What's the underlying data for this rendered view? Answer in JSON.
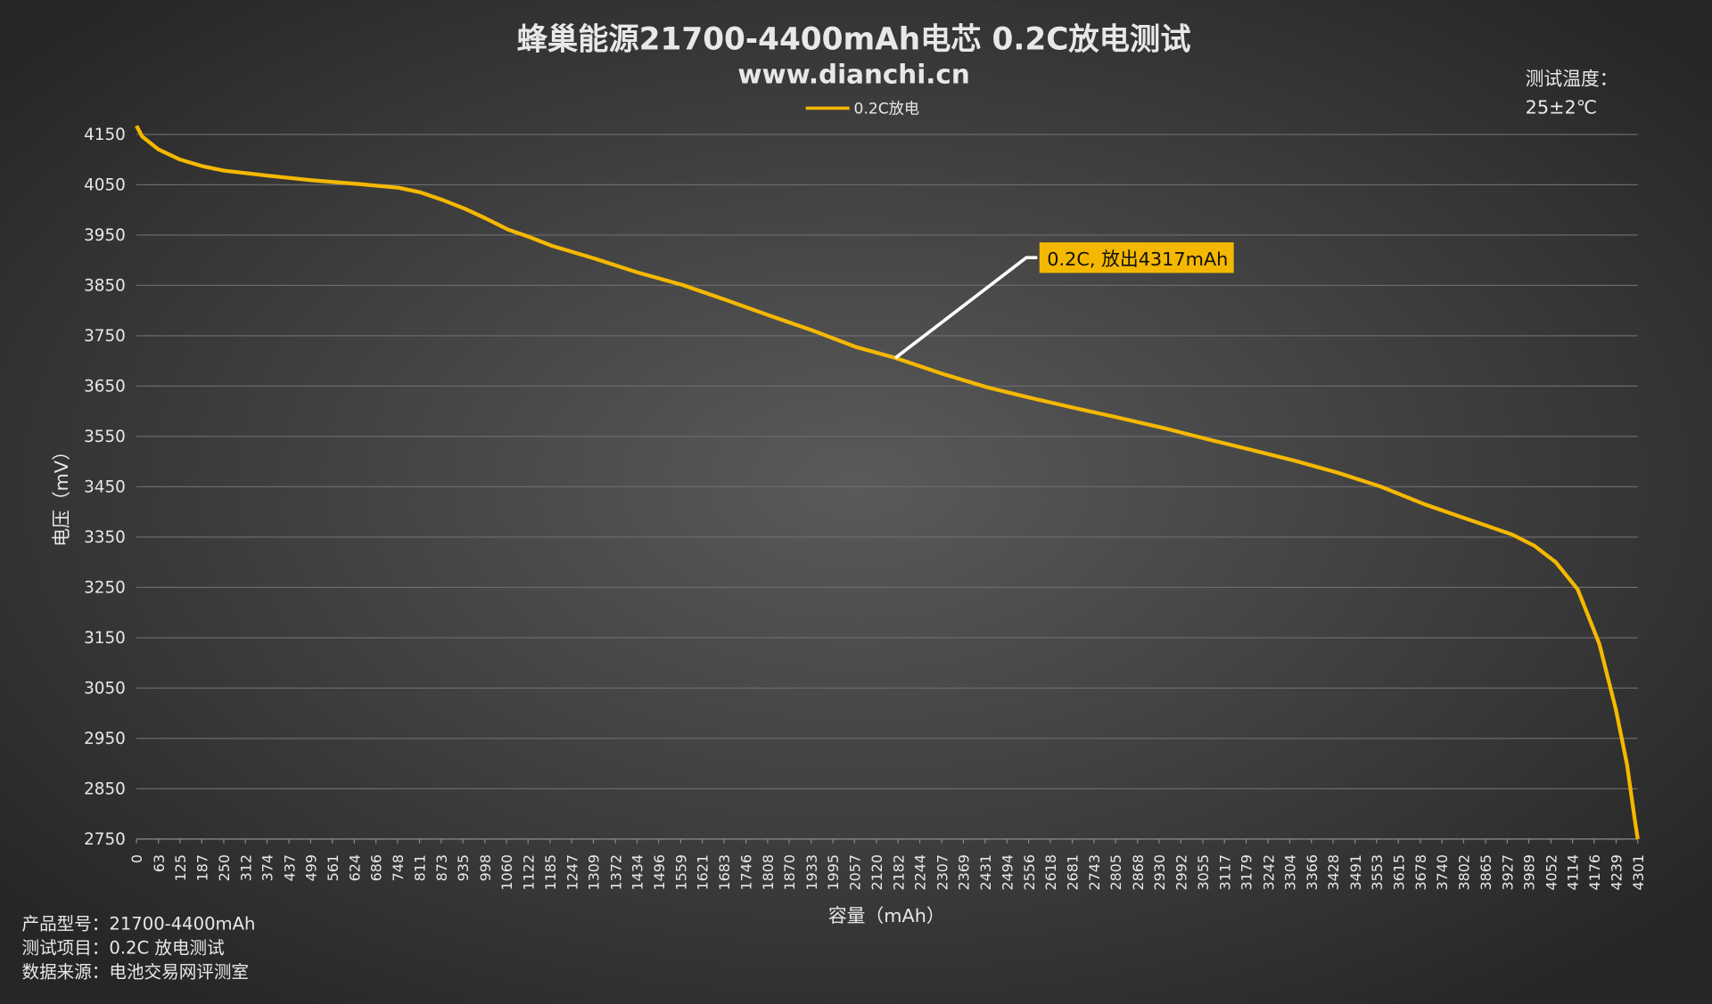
{
  "chart_data": {
    "type": "line",
    "title": "蜂巢能源21700-4400mAh电芯 0.2C放电测试",
    "subtitle": "www.dianchi.cn",
    "note": [
      "测试温度：",
      "25±2℃"
    ],
    "annotation": "0.2C, 放出4317mAh",
    "xlabel": "容量（mAh）",
    "ylabel": "电压（mV）",
    "footer": [
      "产品型号：21700-4400mAh",
      "测试项目：0.2C 放电测试",
      "数据来源：电池交易网评测室"
    ],
    "x": [
      0,
      16,
      63,
      125,
      188,
      250,
      375,
      500,
      626,
      751,
      813,
      876,
      938,
      1001,
      1064,
      1126,
      1189,
      1314,
      1439,
      1564,
      1689,
      1814,
      1939,
      2064,
      2174,
      2315,
      2440,
      2565,
      2690,
      2815,
      2940,
      3065,
      3190,
      3316,
      3441,
      3566,
      3691,
      3816,
      3941,
      4004,
      4066,
      4129,
      4191,
      4238,
      4270,
      4292,
      4301
    ],
    "series": [
      {
        "name": "0.2C放电",
        "color": "#f5b800",
        "values": [
          4167,
          4146,
          4120,
          4100,
          4087,
          4078,
          4068,
          4059,
          4052,
          4044,
          4035,
          4020,
          4003,
          3983,
          3961,
          3946,
          3929,
          3903,
          3875,
          3851,
          3821,
          3790,
          3760,
          3727,
          3706,
          3673,
          3647,
          3626,
          3606,
          3587,
          3567,
          3545,
          3524,
          3502,
          3478,
          3450,
          3415,
          3385,
          3355,
          3333,
          3300,
          3246,
          3138,
          3008,
          2899,
          2791,
          2750
        ]
      }
    ],
    "xlim": [
      0,
      4301
    ],
    "xticks": [
      0,
      63,
      125,
      187,
      250,
      312,
      374,
      437,
      499,
      561,
      624,
      686,
      748,
      811,
      873,
      935,
      998,
      1060,
      1122,
      1185,
      1247,
      1309,
      1372,
      1434,
      1496,
      1559,
      1621,
      1683,
      1746,
      1808,
      1870,
      1933,
      1995,
      2057,
      2120,
      2182,
      2244,
      2307,
      2369,
      2431,
      2494,
      2556,
      2618,
      2681,
      2743,
      2805,
      2868,
      2930,
      2992,
      3055,
      3117,
      3179,
      3242,
      3304,
      3366,
      3428,
      3491,
      3553,
      3615,
      3678,
      3740,
      3802,
      3865,
      3927,
      3989,
      4052,
      4114,
      4176,
      4239,
      4301
    ],
    "ylim": [
      2750,
      4150
    ],
    "yticks": [
      2750,
      2850,
      2950,
      3050,
      3150,
      3250,
      3350,
      3450,
      3550,
      3650,
      3750,
      3850,
      3950,
      4050,
      4150
    ],
    "grid": true
  }
}
